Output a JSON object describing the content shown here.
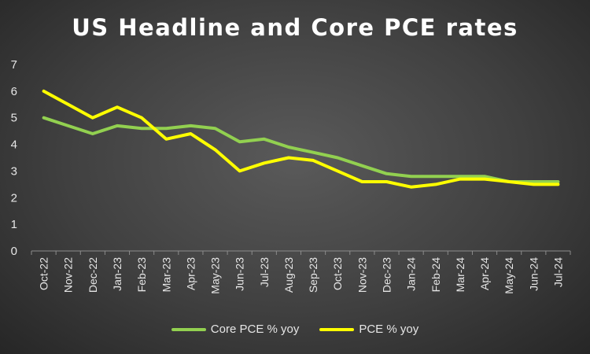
{
  "chart_data": {
    "type": "line",
    "title": "US Headline and Core PCE rates",
    "xlabel": "",
    "ylabel": "",
    "categories": [
      "Oct-22",
      "Nov-22",
      "Dec-22",
      "Jan-23",
      "Feb-23",
      "Mar-23",
      "Apr-23",
      "May-23",
      "Jun-23",
      "Jul-23",
      "Aug-23",
      "Sep-23",
      "Oct-23",
      "Nov-23",
      "Dec-23",
      "Jan-24",
      "Feb-24",
      "Mar-24",
      "Apr-24",
      "May-24",
      "Jun-24",
      "Jul-24"
    ],
    "ylim": [
      0,
      7
    ],
    "yticks": [
      0,
      1,
      2,
      3,
      4,
      5,
      6,
      7
    ],
    "grid": false,
    "legend": "bottom",
    "series": [
      {
        "name": "Core PCE % yoy",
        "color": "#92d050",
        "values": [
          5.0,
          4.7,
          4.4,
          4.7,
          4.6,
          4.6,
          4.7,
          4.6,
          4.1,
          4.2,
          3.9,
          3.7,
          3.5,
          3.2,
          2.9,
          2.8,
          2.8,
          2.8,
          2.8,
          2.6,
          2.6,
          2.6
        ]
      },
      {
        "name": "PCE % yoy",
        "color": "#ffff00",
        "values": [
          6.0,
          5.5,
          5.0,
          5.4,
          5.0,
          4.2,
          4.4,
          3.8,
          3.0,
          3.3,
          3.5,
          3.4,
          3.0,
          2.6,
          2.6,
          2.4,
          2.5,
          2.7,
          2.7,
          2.6,
          2.5,
          2.5
        ]
      }
    ]
  }
}
